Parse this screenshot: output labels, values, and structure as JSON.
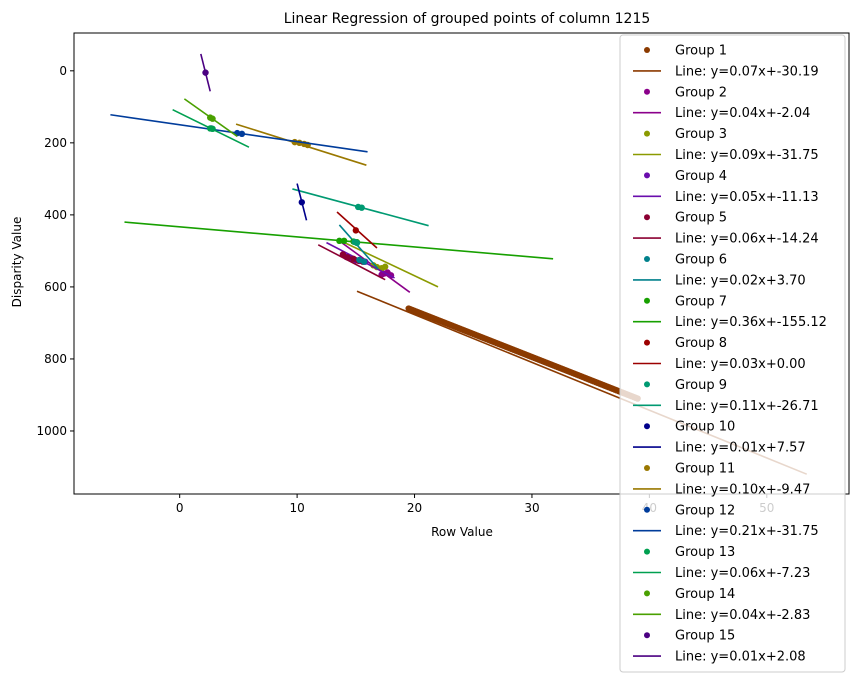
{
  "chart_data": {
    "type": "scatter",
    "title": "Linear Regression of grouped points of column 1215",
    "xlabel": "Row Value",
    "ylabel": "Disparity Value",
    "xlim": [
      -9,
      57
    ],
    "ylim": [
      1175,
      -105
    ],
    "y_inverted": true,
    "x_ticks": [
      0,
      10,
      20,
      30,
      40,
      50
    ],
    "y_ticks": [
      0,
      200,
      400,
      600,
      800,
      1000
    ],
    "grid": false,
    "legend_position": "top-right",
    "series": [
      {
        "group": "Group 1",
        "line_label": "Line: y=0.07x+-30.19",
        "color": "#8b3a00",
        "points_segment": [
          [
            19.5,
            660
          ],
          [
            39.0,
            910
          ]
        ],
        "dense": true,
        "line": [
          [
            15.1,
            612
          ],
          [
            53.4,
            1120
          ]
        ]
      },
      {
        "group": "Group 2",
        "line_label": "Line: y=0.04x+-2.04",
        "color": "#8b008b",
        "points": [
          [
            17.4,
            563
          ],
          [
            17.7,
            560
          ],
          [
            18.0,
            568
          ],
          [
            17.2,
            566
          ]
        ],
        "line": [
          [
            13.5,
            470
          ],
          [
            19.6,
            615
          ]
        ]
      },
      {
        "group": "Group 3",
        "line_label": "Line: y=0.09x+-31.75",
        "color": "#8b9a00",
        "points": [
          [
            16.5,
            540
          ],
          [
            16.8,
            545
          ],
          [
            17.2,
            548
          ],
          [
            17.5,
            544
          ]
        ],
        "line": [
          [
            13.9,
            475
          ],
          [
            22.0,
            600
          ]
        ]
      },
      {
        "group": "Group 4",
        "line_label": "Line: y=0.05x+-11.13",
        "color": "#6a0dad",
        "points": [
          [
            14.2,
            517
          ],
          [
            14.6,
            522
          ],
          [
            15.0,
            526
          ],
          [
            15.3,
            528
          ],
          [
            15.8,
            530
          ]
        ],
        "line": [
          [
            12.5,
            477
          ],
          [
            18.3,
            575
          ]
        ]
      },
      {
        "group": "Group 5",
        "line_label": "Line: y=0.06x+-14.24",
        "color": "#8b0032",
        "points": [
          [
            13.9,
            510
          ],
          [
            14.3,
            518
          ],
          [
            14.8,
            522
          ],
          [
            15.2,
            527
          ],
          [
            15.6,
            530
          ]
        ],
        "line": [
          [
            11.8,
            483
          ],
          [
            17.5,
            580
          ]
        ]
      },
      {
        "group": "Group 6",
        "line_label": "Line: y=0.02x+3.70",
        "color": "#00808b",
        "points": [
          [
            15.3,
            525
          ],
          [
            15.7,
            530
          ]
        ],
        "line": [
          [
            13.6,
            428
          ],
          [
            16.9,
            550
          ]
        ]
      },
      {
        "group": "Group 7",
        "line_label": "Line: y=0.36x+-155.12",
        "color": "#17a000",
        "points": [
          [
            13.6,
            472
          ],
          [
            14.0,
            472
          ],
          [
            14.8,
            474
          ],
          [
            15.1,
            476
          ]
        ],
        "line": [
          [
            -4.7,
            420
          ],
          [
            31.8,
            522
          ]
        ]
      },
      {
        "group": "Group 8",
        "line_label": "Line: y=0.03x+0.00",
        "color": "#9c0000",
        "points": [
          [
            15.0,
            443
          ]
        ],
        "line": [
          [
            13.4,
            392
          ],
          [
            16.8,
            492
          ]
        ]
      },
      {
        "group": "Group 9",
        "line_label": "Line: y=0.11x+-26.71",
        "color": "#009a72",
        "points": [
          [
            15.2,
            378
          ],
          [
            15.5,
            380
          ],
          [
            14.9,
            475
          ],
          [
            15.1,
            478
          ]
        ],
        "line": [
          [
            9.6,
            328
          ],
          [
            21.2,
            430
          ]
        ]
      },
      {
        "group": "Group 10",
        "line_label": "Line: y=0.01x+7.57",
        "color": "#00008b",
        "points": [
          [
            10.4,
            365
          ]
        ],
        "line": [
          [
            10.0,
            313
          ],
          [
            10.8,
            415
          ]
        ]
      },
      {
        "group": "Group 11",
        "line_label": "Line: y=0.10x+-9.47",
        "color": "#9a7800",
        "points": [
          [
            9.8,
            198
          ],
          [
            10.2,
            200
          ],
          [
            10.6,
            203
          ],
          [
            10.9,
            206
          ]
        ],
        "line": [
          [
            4.8,
            148
          ],
          [
            15.9,
            262
          ]
        ]
      },
      {
        "group": "Group 12",
        "line_label": "Line: y=0.21x+-31.75",
        "color": "#003c9b",
        "points": [
          [
            4.9,
            173
          ],
          [
            5.3,
            175
          ],
          [
            2.7,
            160
          ]
        ],
        "line": [
          [
            -5.9,
            122
          ],
          [
            16.0,
            225
          ]
        ]
      },
      {
        "group": "Group 13",
        "line_label": "Line: y=0.06x+-7.23",
        "color": "#00a050",
        "points": [
          [
            2.6,
            160
          ],
          [
            2.8,
            161
          ]
        ],
        "line": [
          [
            -0.6,
            108
          ],
          [
            5.9,
            212
          ]
        ]
      },
      {
        "group": "Group 14",
        "line_label": "Line: y=0.04x+-2.83",
        "color": "#4aa000",
        "points": [
          [
            2.6,
            130
          ],
          [
            2.8,
            133
          ]
        ],
        "line": [
          [
            0.4,
            78
          ],
          [
            4.9,
            182
          ]
        ]
      },
      {
        "group": "Group 15",
        "line_label": "Line: y=0.01x+2.08",
        "color": "#4b0082",
        "points": [
          [
            2.2,
            5
          ]
        ],
        "line": [
          [
            1.8,
            -47
          ],
          [
            2.6,
            57
          ]
        ]
      }
    ]
  }
}
